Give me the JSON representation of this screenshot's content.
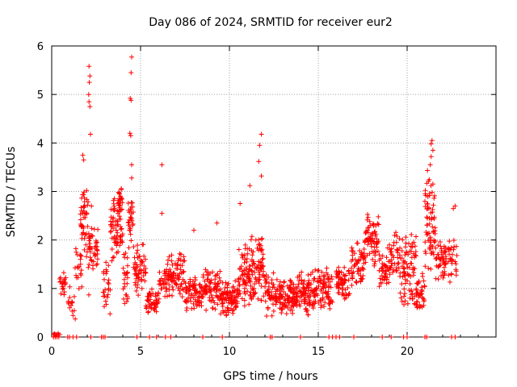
{
  "chart_data": {
    "type": "scatter",
    "title": "Day 086 of 2024, SRMTID for receiver eur2",
    "xlabel": "GPS time / hours",
    "ylabel": "SRMTID / TECUs",
    "xlim": [
      0,
      25
    ],
    "ylim": [
      0,
      6
    ],
    "x_ticks": [
      0,
      5,
      10,
      15,
      20
    ],
    "y_ticks": [
      0,
      1,
      2,
      3,
      4,
      5,
      6
    ],
    "grid": true,
    "marker": "+",
    "color": "#ff0000",
    "series": [
      {
        "name": "SRMTID",
        "segments": [
          {
            "x0": 0.05,
            "x1": 0.5,
            "base": 0.02,
            "amp": 0.15,
            "n": 12
          },
          {
            "x0": 0.45,
            "x1": 0.8,
            "base": 1.2,
            "amp": 0.4,
            "n": 20
          },
          {
            "x0": 0.9,
            "x1": 1.35,
            "base": 0.7,
            "amp": 0.4,
            "n": 15
          },
          {
            "x0": 1.3,
            "x1": 1.7,
            "base": 1.4,
            "amp": 0.6,
            "n": 20
          },
          {
            "x0": 1.6,
            "x1": 2.0,
            "base": 2.4,
            "amp": 1.0,
            "n": 40
          },
          {
            "x0": 2.0,
            "x1": 2.25,
            "base": 2.0,
            "amp": 1.4,
            "n": 25
          },
          {
            "x0": 2.25,
            "x1": 2.6,
            "base": 1.8,
            "amp": 0.5,
            "n": 25
          },
          {
            "x0": 2.9,
            "x1": 3.3,
            "base": 1.0,
            "amp": 0.6,
            "n": 25
          },
          {
            "x0": 3.3,
            "x1": 4.0,
            "base": 2.2,
            "amp": 0.8,
            "n": 70
          },
          {
            "x0": 3.7,
            "x1": 4.0,
            "base": 2.8,
            "amp": 0.3,
            "n": 20
          },
          {
            "x0": 4.0,
            "x1": 4.3,
            "base": 1.2,
            "amp": 0.7,
            "n": 25
          },
          {
            "x0": 4.3,
            "x1": 4.6,
            "base": 2.4,
            "amp": 0.7,
            "n": 30
          },
          {
            "x0": 4.6,
            "x1": 5.3,
            "base": 1.4,
            "amp": 0.6,
            "n": 60
          },
          {
            "x0": 5.3,
            "x1": 6.0,
            "base": 0.7,
            "amp": 0.3,
            "n": 50
          },
          {
            "x0": 6.0,
            "x1": 6.5,
            "base": 1.1,
            "amp": 0.4,
            "n": 30
          },
          {
            "x0": 6.5,
            "x1": 7.5,
            "base": 1.3,
            "amp": 0.5,
            "n": 80
          },
          {
            "x0": 7.5,
            "x1": 8.5,
            "base": 0.9,
            "amp": 0.4,
            "n": 80
          },
          {
            "x0": 8.5,
            "x1": 9.5,
            "base": 1.0,
            "amp": 0.5,
            "n": 80
          },
          {
            "x0": 9.5,
            "x1": 10.5,
            "base": 0.8,
            "amp": 0.4,
            "n": 90
          },
          {
            "x0": 10.5,
            "x1": 11.2,
            "base": 1.3,
            "amp": 0.7,
            "n": 70
          },
          {
            "x0": 11.2,
            "x1": 12.0,
            "base": 1.4,
            "amp": 0.8,
            "n": 80
          },
          {
            "x0": 12.0,
            "x1": 12.5,
            "base": 0.9,
            "amp": 0.5,
            "n": 40
          },
          {
            "x0": 12.5,
            "x1": 13.8,
            "base": 0.8,
            "amp": 0.4,
            "n": 120
          },
          {
            "x0": 13.8,
            "x1": 14.8,
            "base": 0.9,
            "amp": 0.5,
            "n": 90
          },
          {
            "x0": 14.8,
            "x1": 15.8,
            "base": 1.0,
            "amp": 0.5,
            "n": 80
          },
          {
            "x0": 16.0,
            "x1": 16.8,
            "base": 1.1,
            "amp": 0.4,
            "n": 60
          },
          {
            "x0": 16.8,
            "x1": 17.6,
            "base": 1.5,
            "amp": 0.5,
            "n": 60
          },
          {
            "x0": 17.6,
            "x1": 18.4,
            "base": 2.0,
            "amp": 0.6,
            "n": 70
          },
          {
            "x0": 18.4,
            "x1": 19.0,
            "base": 1.4,
            "amp": 0.5,
            "n": 40
          },
          {
            "x0": 19.0,
            "x1": 19.6,
            "base": 1.7,
            "amp": 0.5,
            "n": 40
          },
          {
            "x0": 19.6,
            "x1": 20.5,
            "base": 1.4,
            "amp": 0.9,
            "n": 80
          },
          {
            "x0": 20.5,
            "x1": 21.0,
            "base": 0.9,
            "amp": 0.5,
            "n": 40
          },
          {
            "x0": 21.0,
            "x1": 21.6,
            "base": 2.4,
            "amp": 1.2,
            "n": 70
          },
          {
            "x0": 21.6,
            "x1": 22.2,
            "base": 1.6,
            "amp": 0.5,
            "n": 50
          },
          {
            "x0": 22.3,
            "x1": 22.8,
            "base": 1.6,
            "amp": 0.6,
            "n": 30
          }
        ],
        "peaks": [
          [
            2.1,
            5.58
          ],
          [
            2.15,
            5.38
          ],
          [
            2.12,
            5.25
          ],
          [
            2.08,
            5.0
          ],
          [
            2.1,
            4.85
          ],
          [
            2.15,
            4.75
          ],
          [
            2.18,
            4.18
          ],
          [
            1.75,
            3.75
          ],
          [
            1.8,
            3.65
          ],
          [
            4.5,
            5.77
          ],
          [
            4.47,
            5.45
          ],
          [
            4.42,
            4.92
          ],
          [
            4.47,
            4.88
          ],
          [
            4.4,
            4.2
          ],
          [
            4.45,
            4.15
          ],
          [
            4.5,
            3.55
          ],
          [
            4.5,
            3.28
          ],
          [
            6.2,
            3.55
          ],
          [
            6.2,
            2.55
          ],
          [
            11.8,
            4.18
          ],
          [
            11.7,
            3.95
          ],
          [
            11.65,
            3.62
          ],
          [
            11.8,
            3.32
          ],
          [
            11.15,
            3.12
          ],
          [
            21.4,
            4.05
          ],
          [
            21.35,
            3.98
          ],
          [
            21.45,
            3.85
          ],
          [
            21.35,
            3.72
          ],
          [
            21.3,
            3.55
          ],
          [
            8.0,
            2.2
          ],
          [
            9.3,
            2.35
          ],
          [
            10.6,
            2.75
          ],
          [
            22.6,
            2.65
          ],
          [
            22.7,
            2.7
          ]
        ],
        "baseline_x": [
          0.1,
          0.2,
          0.3,
          0.4,
          0.9,
          1.0,
          1.2,
          1.4,
          2.2,
          2.8,
          2.9,
          3.0,
          4.8,
          5.5,
          5.9,
          6.4,
          6.7,
          8.5,
          9.6,
          12.3,
          12.4,
          14.0,
          15.6,
          15.8,
          16.0,
          16.2,
          17.0,
          18.6,
          19.1,
          19.8,
          20.0,
          21.0,
          21.1,
          22.5,
          22.7
        ]
      }
    ]
  }
}
